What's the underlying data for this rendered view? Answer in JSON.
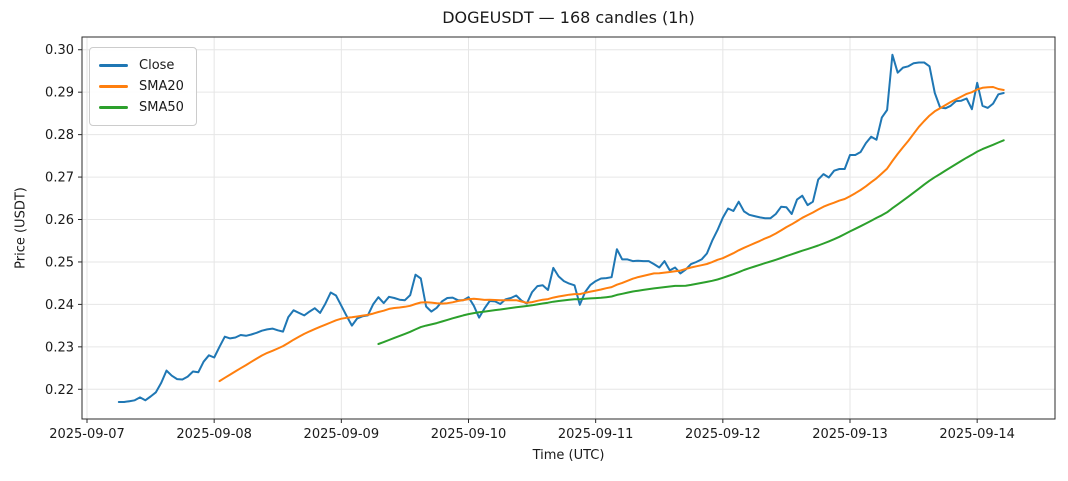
{
  "chart_data": {
    "type": "line",
    "title": "DOGEUSDT — 168 candles (1h)",
    "xlabel": "Time (UTC)",
    "ylabel": "Price (USDT)",
    "symbol": "DOGEUSDT",
    "candle_count": 168,
    "interval": "1h",
    "start_time": "2025-09-07",
    "end_time": "2025-09-14",
    "grid": true,
    "legend_position": "upper-left",
    "ylim": [
      0.213,
      0.303
    ],
    "x_axis": {
      "tick_labels": [
        "2025-09-07",
        "2025-09-08",
        "2025-09-09",
        "2025-09-10",
        "2025-09-11",
        "2025-09-12",
        "2025-09-13",
        "2025-09-14"
      ]
    },
    "y_axis": {
      "tick_labels": [
        "0.22",
        "0.23",
        "0.24",
        "0.25",
        "0.26",
        "0.27",
        "0.28",
        "0.29",
        "0.30"
      ]
    },
    "series": [
      {
        "name": "Close",
        "color": "#1f77b4",
        "values": [
          0.217,
          0.217,
          0.2172,
          0.2174,
          0.2181,
          0.2174,
          0.2183,
          0.2193,
          0.2215,
          0.2244,
          0.2232,
          0.2224,
          0.2223,
          0.223,
          0.2242,
          0.224,
          0.2265,
          0.228,
          0.2275,
          0.23,
          0.2324,
          0.232,
          0.2322,
          0.2328,
          0.2326,
          0.2329,
          0.2333,
          0.2338,
          0.2341,
          0.2343,
          0.2339,
          0.2336,
          0.237,
          0.2386,
          0.238,
          0.2374,
          0.2383,
          0.2391,
          0.238,
          0.2402,
          0.2428,
          0.2421,
          0.2397,
          0.2373,
          0.235,
          0.2367,
          0.2372,
          0.2374,
          0.24,
          0.2417,
          0.2403,
          0.2418,
          0.2415,
          0.2411,
          0.241,
          0.2422,
          0.247,
          0.2461,
          0.2395,
          0.2383,
          0.2392,
          0.2407,
          0.2415,
          0.2416,
          0.241,
          0.241,
          0.2417,
          0.2397,
          0.2369,
          0.239,
          0.2408,
          0.2407,
          0.2401,
          0.2412,
          0.2415,
          0.2421,
          0.2409,
          0.2402,
          0.2429,
          0.2443,
          0.2445,
          0.2434,
          0.2486,
          0.2466,
          0.2455,
          0.2449,
          0.2445,
          0.2399,
          0.2429,
          0.2446,
          0.2455,
          0.2461,
          0.2462,
          0.2464,
          0.253,
          0.2506,
          0.2506,
          0.2502,
          0.2503,
          0.2502,
          0.2502,
          0.2495,
          0.2487,
          0.2502,
          0.248,
          0.2487,
          0.2473,
          0.2482,
          0.2495,
          0.25,
          0.2506,
          0.252,
          0.255,
          0.2575,
          0.2604,
          0.2626,
          0.262,
          0.2642,
          0.2619,
          0.2611,
          0.2608,
          0.2605,
          0.2603,
          0.2603,
          0.2613,
          0.263,
          0.2629,
          0.2613,
          0.2647,
          0.2656,
          0.2634,
          0.2642,
          0.2694,
          0.2707,
          0.2699,
          0.2715,
          0.2719,
          0.2719,
          0.2752,
          0.2752,
          0.2759,
          0.278,
          0.2795,
          0.2788,
          0.284,
          0.2858,
          0.2988,
          0.2946,
          0.2958,
          0.2961,
          0.2968,
          0.297,
          0.297,
          0.2961,
          0.2898,
          0.2864,
          0.2862,
          0.2868,
          0.2879,
          0.288,
          0.2885,
          0.286,
          0.2922,
          0.2868,
          0.2863,
          0.2873,
          0.2895,
          0.2898
        ]
      },
      {
        "name": "SMA20",
        "color": "#ff7f0e",
        "derived": "sma",
        "window": 20
      },
      {
        "name": "SMA50",
        "color": "#2ca02c",
        "derived": "sma",
        "window": 50
      }
    ]
  }
}
